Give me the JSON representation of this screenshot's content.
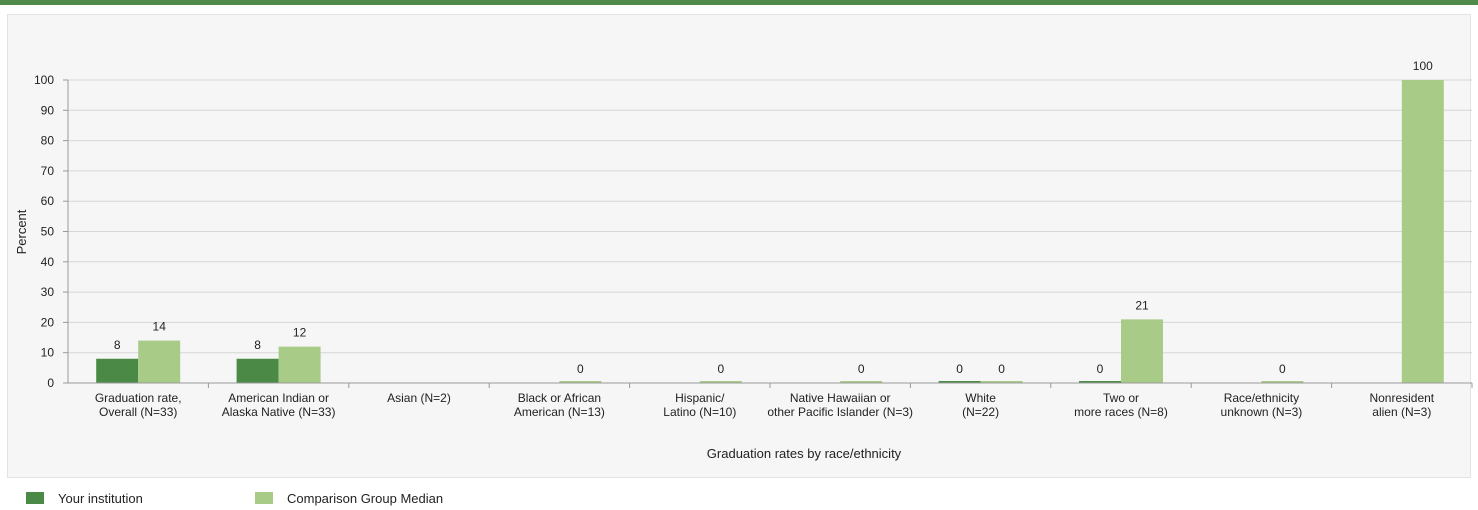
{
  "colors": {
    "institution": "#4a8a46",
    "comparison": "#a8cc88",
    "accent": "#4f8a4a"
  },
  "legend": {
    "items": [
      {
        "label": "Your institution",
        "color": "#4a8a46"
      },
      {
        "label": "Comparison Group Median",
        "color": "#a8cc88"
      }
    ]
  },
  "chart_data": {
    "type": "bar",
    "title": "",
    "xlabel": "Graduation rates by race/ethnicity",
    "ylabel": "Percent",
    "ylim": [
      0,
      100
    ],
    "yticks": [
      0,
      10,
      20,
      30,
      40,
      50,
      60,
      70,
      80,
      90,
      100
    ],
    "grid": true,
    "legend_position": "bottom-left",
    "categories": [
      [
        "Graduation rate,",
        "Overall (N=33)"
      ],
      [
        "American Indian or",
        "Alaska Native (N=33)"
      ],
      [
        "Asian (N=2)"
      ],
      [
        "Black or African",
        "American (N=13)"
      ],
      [
        "Hispanic/",
        "Latino (N=10)"
      ],
      [
        "Native Hawaiian or",
        "other Pacific Islander (N=3)"
      ],
      [
        "White",
        "(N=22)"
      ],
      [
        "Two or",
        "more races (N=8)"
      ],
      [
        "Race/ethnicity",
        "unknown (N=3)"
      ],
      [
        "Nonresident",
        "alien (N=3)"
      ]
    ],
    "series": [
      {
        "name": "Your institution",
        "values": [
          8,
          8,
          null,
          null,
          null,
          null,
          0,
          0,
          null,
          null
        ]
      },
      {
        "name": "Comparison Group Median",
        "values": [
          14,
          12,
          null,
          0,
          0,
          0,
          0,
          21,
          0,
          100
        ]
      }
    ]
  }
}
